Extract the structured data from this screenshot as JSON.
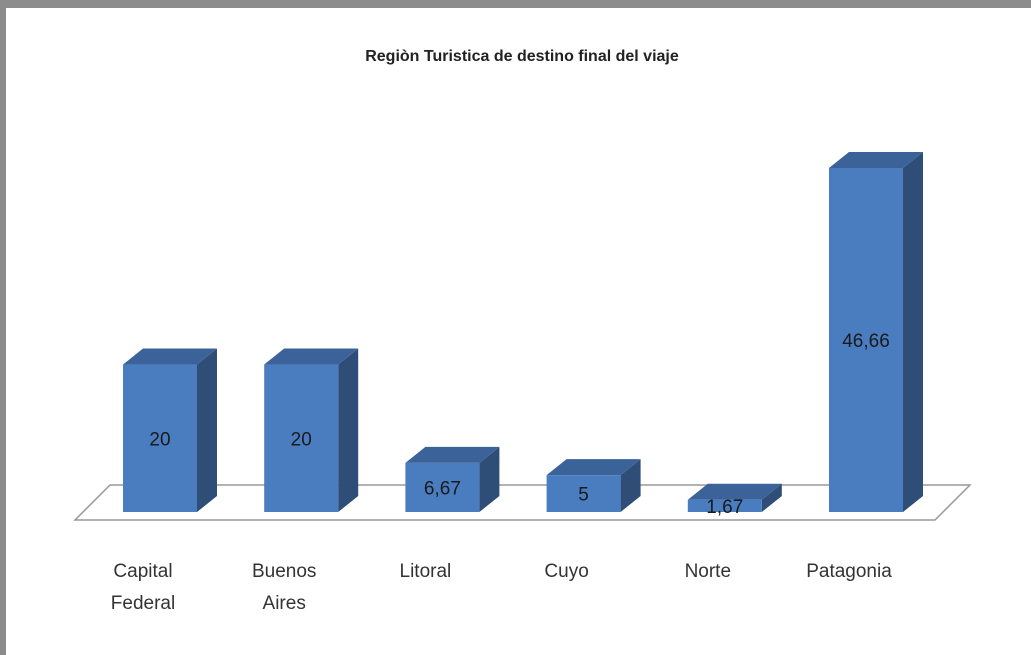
{
  "chart_data": {
    "type": "bar3d",
    "title": "Regiòn Turistica de destino final del viaje",
    "categories": [
      "Capital Federal",
      "Buenos Aires",
      "Litoral",
      "Cuyo",
      "Norte",
      "Patagonia"
    ],
    "values": [
      20,
      20,
      6.67,
      5,
      1.67,
      46.66
    ],
    "value_labels": [
      "20",
      "20",
      "6,67",
      "5",
      "1,67",
      "46,66"
    ],
    "color": "#4a7cc0"
  }
}
